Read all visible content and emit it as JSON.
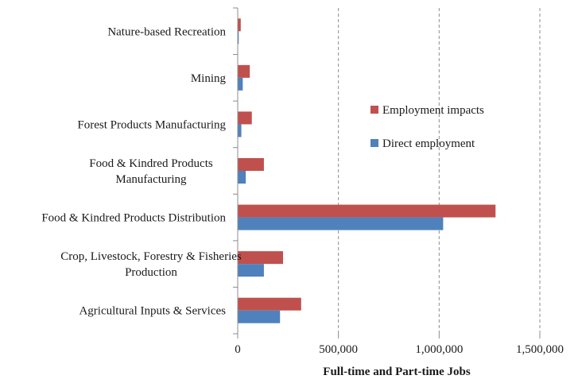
{
  "chart_data": {
    "type": "bar",
    "orientation": "horizontal",
    "categories": [
      [
        "Nature-based Recreation"
      ],
      [
        "Mining"
      ],
      [
        "Forest Products Manufacturing"
      ],
      [
        "Food & Kindred Products",
        "Manufacturing"
      ],
      [
        "Food & Kindred Products Distribution"
      ],
      [
        "Crop, Livestock, Forestry & Fisheries",
        "Production"
      ],
      [
        "Agricultural Inputs & Services"
      ]
    ],
    "series": [
      {
        "name": "Employment impacts",
        "color": "#c0504d",
        "values": [
          15000,
          60000,
          70000,
          130000,
          1280000,
          225000,
          315000
        ]
      },
      {
        "name": "Direct employment",
        "color": "#4f81bd",
        "values": [
          5000,
          25000,
          18000,
          40000,
          1020000,
          130000,
          210000
        ]
      }
    ],
    "xlim": [
      0,
      1500000
    ],
    "xticks": [
      0,
      500000,
      1000000,
      1500000
    ],
    "xtick_labels": [
      "0",
      "500,000",
      "1,000,000",
      "1,500,000"
    ],
    "xlabel": "Full-time and Part-time Jobs",
    "ylabel": "",
    "grid": "vertical-dashed",
    "legend_position": "right"
  }
}
